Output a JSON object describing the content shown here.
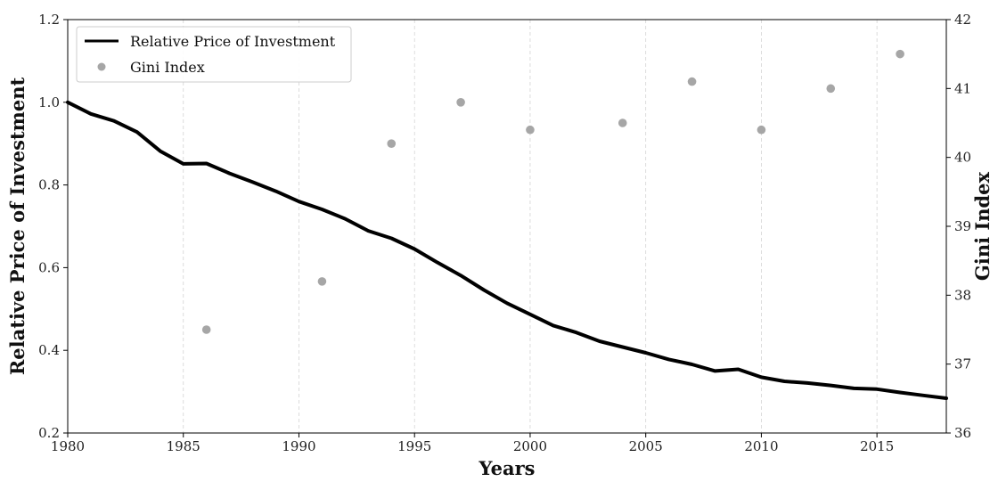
{
  "chart_data": {
    "type": "line",
    "xlabel": "Years",
    "ylabel": "Relative Price of Investment",
    "y2label": "Gini Index",
    "xlim": [
      1980,
      2018
    ],
    "ylim": [
      0.2,
      1.2
    ],
    "y2lim": [
      36,
      42
    ],
    "x_ticks": [
      "1980",
      "1985",
      "1990",
      "1995",
      "2000",
      "2005",
      "2010",
      "2015"
    ],
    "y_ticks": [
      "0.2",
      "0.4",
      "0.6",
      "0.8",
      "1.0",
      "1.2"
    ],
    "y2_ticks": [
      "36",
      "37",
      "38",
      "39",
      "40",
      "41",
      "42"
    ],
    "grid": "vertical dashed",
    "legend_position": "top-left",
    "series": [
      {
        "name": "Relative Price of Investment",
        "type": "line",
        "axis": "left",
        "color": "#000000",
        "x": [
          1980,
          1981,
          1982,
          1983,
          1984,
          1985,
          1986,
          1987,
          1988,
          1989,
          1990,
          1991,
          1992,
          1993,
          1994,
          1995,
          1996,
          1997,
          1998,
          1999,
          2000,
          2001,
          2002,
          2003,
          2004,
          2005,
          2006,
          2007,
          2008,
          2009,
          2010,
          2011,
          2012,
          2013,
          2014,
          2015,
          2016,
          2017,
          2018
        ],
        "values": [
          1.0,
          0.972,
          0.955,
          0.928,
          0.882,
          0.851,
          0.852,
          0.828,
          0.807,
          0.785,
          0.76,
          0.741,
          0.718,
          0.689,
          0.671,
          0.645,
          0.612,
          0.581,
          0.546,
          0.514,
          0.487,
          0.46,
          0.443,
          0.422,
          0.408,
          0.394,
          0.378,
          0.366,
          0.35,
          0.354,
          0.335,
          0.325,
          0.321,
          0.315,
          0.308,
          0.306,
          0.298,
          0.291,
          0.284
        ]
      },
      {
        "name": "Gini Index",
        "type": "scatter",
        "axis": "right",
        "color": "#a6a6a6",
        "x": [
          1986,
          1991,
          1994,
          1997,
          2000,
          2004,
          2007,
          2010,
          2013,
          2016
        ],
        "values": [
          37.5,
          38.2,
          40.2,
          40.8,
          40.4,
          40.5,
          41.1,
          40.4,
          41.0,
          41.5
        ]
      }
    ]
  }
}
